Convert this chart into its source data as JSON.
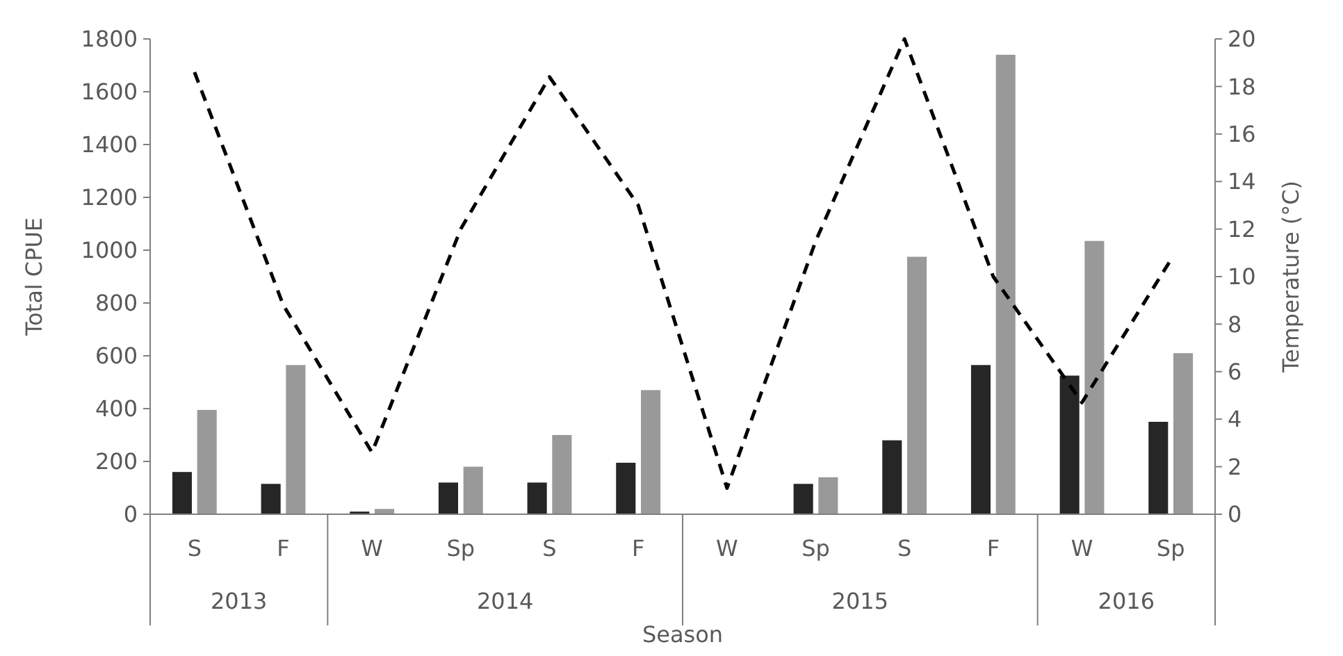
{
  "chart_data": {
    "type": "bar",
    "xlabel": "Season",
    "ylabel": "Total CPUE",
    "y2label": "Temperature (°C)",
    "categories": [
      "S",
      "F",
      "W",
      "Sp",
      "S",
      "F",
      "W",
      "Sp",
      "S",
      "F",
      "W",
      "Sp"
    ],
    "annotations": [
      "2013",
      "2014",
      "2015",
      "2016"
    ],
    "ylim": [
      0,
      1800
    ],
    "yticks": [
      0,
      200,
      400,
      600,
      800,
      1000,
      1200,
      1400,
      1600,
      1800
    ],
    "y2lim": [
      0,
      20
    ],
    "y2ticks": [
      0,
      2,
      4,
      6,
      8,
      10,
      12,
      14,
      16,
      18,
      20
    ],
    "grid": false,
    "series": [
      {
        "color": "#262626",
        "values": [
          160,
          115,
          10,
          120,
          120,
          195,
          0,
          115,
          280,
          565,
          525,
          350
        ]
      },
      {
        "color": "#999999",
        "values": [
          395,
          565,
          20,
          180,
          300,
          470,
          0,
          140,
          975,
          1740,
          1035,
          610
        ]
      },
      {
        "type": "line",
        "axis": "y2",
        "color": "#000000",
        "line_style": "dashed",
        "marker": "none",
        "values": [
          18.6,
          8.8,
          2.6,
          12.0,
          18.4,
          13.0,
          1.1,
          11.5,
          20.0,
          10.0,
          4.7,
          10.7
        ]
      }
    ]
  }
}
